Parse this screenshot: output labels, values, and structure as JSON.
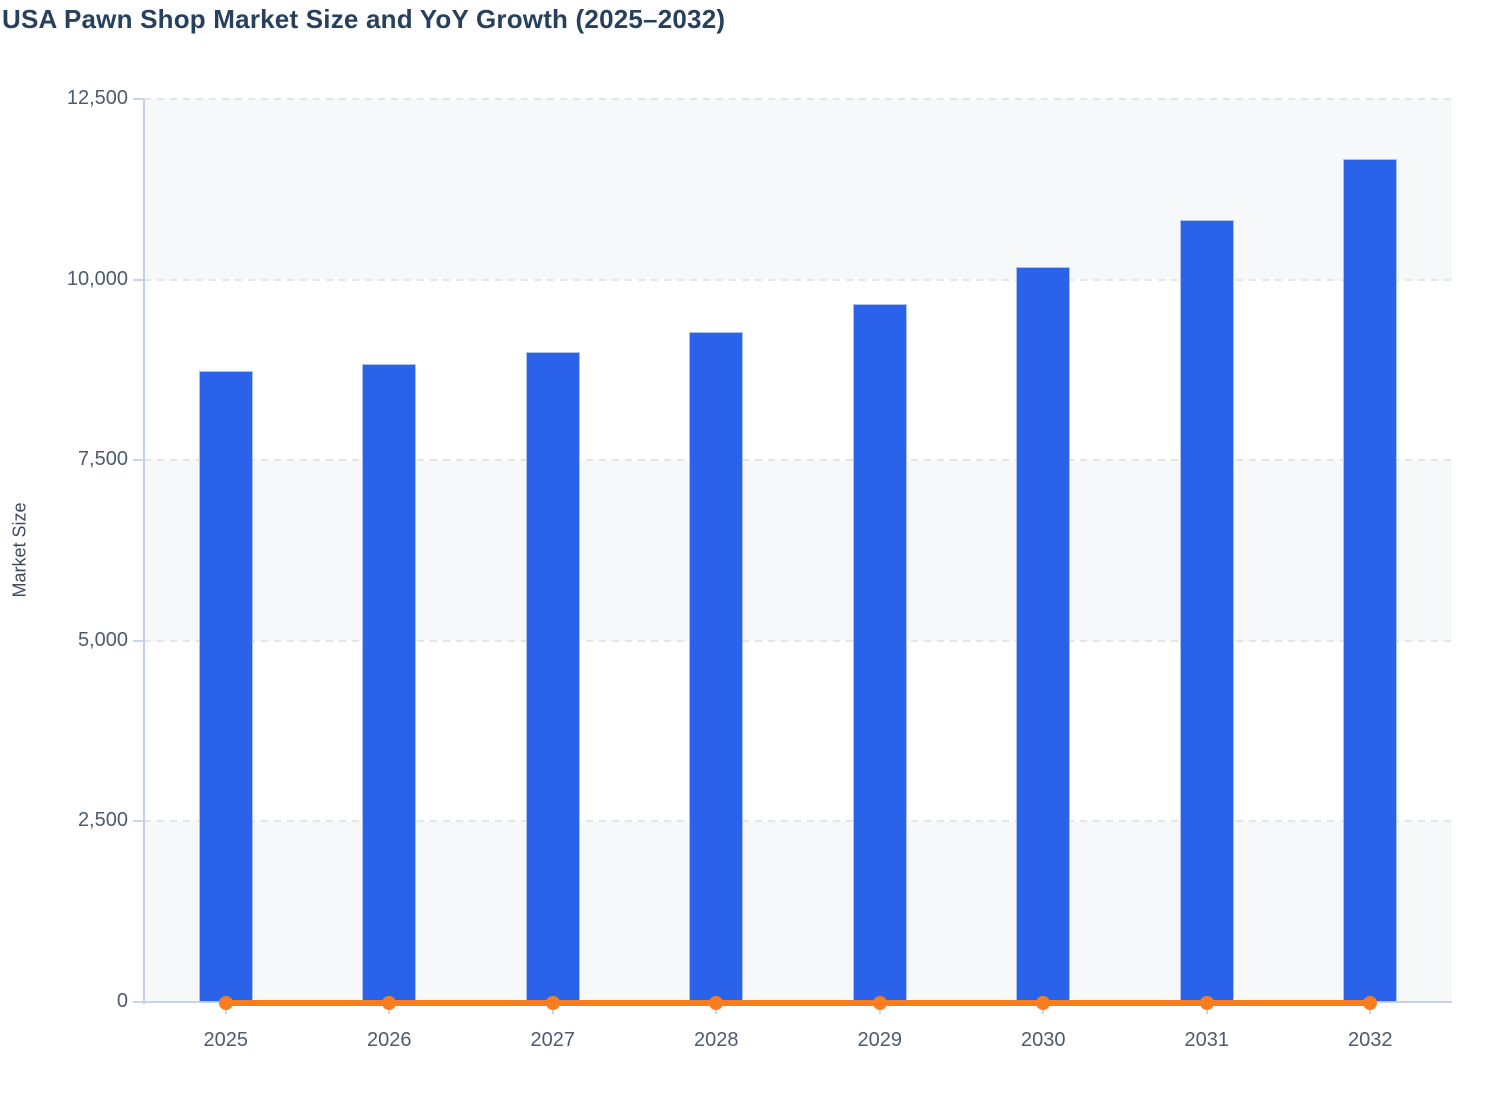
{
  "title": "USA Pawn Shop Market Size and YoY Growth (2025–2032)",
  "colors": {
    "bar_fill": "#2a63e9",
    "bar_border": "#a9c3f1",
    "line_orange": "#f97d1e",
    "title_text": "#26405e",
    "axis_text": "#4d5a70",
    "axis_line": "#c3cfec",
    "gridline": "#e3e5e9",
    "plot_band": "#f6f8fa"
  },
  "chart_data": {
    "type": "bar",
    "title": "USA Pawn Shop Market Size and YoY Growth (2025–2032)",
    "xlabel": "",
    "ylabel": "Market Size",
    "categories": [
      "2025",
      "2026",
      "2027",
      "2028",
      "2029",
      "2030",
      "2031",
      "2032"
    ],
    "series": [
      {
        "name": "Market Size",
        "type": "bar",
        "color": "#2a63e9",
        "values": [
          8740,
          8830,
          9000,
          9275,
          9660,
          10175,
          10825,
          11670
        ]
      },
      {
        "name": "YoY Growth",
        "type": "line",
        "color": "#f97d1e",
        "marker": "circle",
        "values": [
          0,
          0,
          0,
          0,
          0,
          0,
          0,
          0
        ]
      }
    ],
    "ylim": [
      0,
      12500
    ],
    "yticks": [
      0,
      2500,
      5000,
      7500,
      10000,
      12500
    ],
    "ytick_labels": [
      "0",
      "2,500",
      "5,000",
      "7,500",
      "10,000",
      "12,500"
    ],
    "grid": "horizontal-dashed",
    "plot_bands": "alternating-horizontal",
    "legend_position": "none"
  }
}
